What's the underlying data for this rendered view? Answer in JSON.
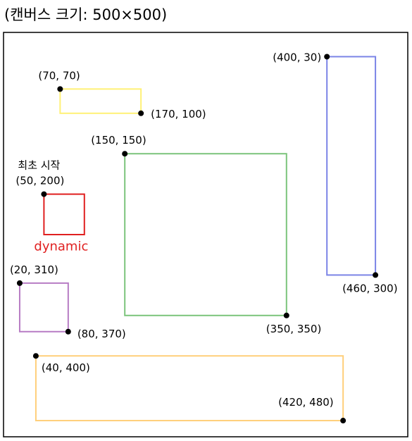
{
  "title": "(캔버스 크기: 500×500)",
  "canvas": {
    "width": 500,
    "height": 500
  },
  "rects": [
    {
      "id": "yellow",
      "color": "#fff176",
      "top_left": [
        70,
        70
      ],
      "bottom_right": [
        170,
        100
      ],
      "label_tl": "(70, 70)",
      "label_br": "(170, 100)"
    },
    {
      "id": "blue",
      "color": "#7b84e6",
      "top_left": [
        400,
        30
      ],
      "bottom_right": [
        460,
        300
      ],
      "label_tl": "(400, 30)",
      "label_br": "(460, 300)"
    },
    {
      "id": "green",
      "color": "#7cc47c",
      "top_left": [
        150,
        150
      ],
      "bottom_right": [
        350,
        350
      ],
      "label_tl": "(150, 150)",
      "label_br": "(350, 350)"
    },
    {
      "id": "red",
      "color": "#e02020",
      "top_left": [
        50,
        200
      ],
      "bottom_right": [
        100,
        250
      ],
      "label_tl": "(50, 200)",
      "caption_top": "최초 시작",
      "caption_bottom": "dynamic"
    },
    {
      "id": "purple",
      "color": "#b77cc4",
      "top_left": [
        20,
        310
      ],
      "bottom_right": [
        80,
        370
      ],
      "label_tl": "(20, 310)",
      "label_br": "(80, 370)"
    },
    {
      "id": "orange",
      "color": "#ffcf7a",
      "top_left": [
        40,
        400
      ],
      "bottom_right": [
        420,
        480
      ],
      "label_tl": "(40, 400)",
      "label_br": "(420, 480)"
    }
  ]
}
